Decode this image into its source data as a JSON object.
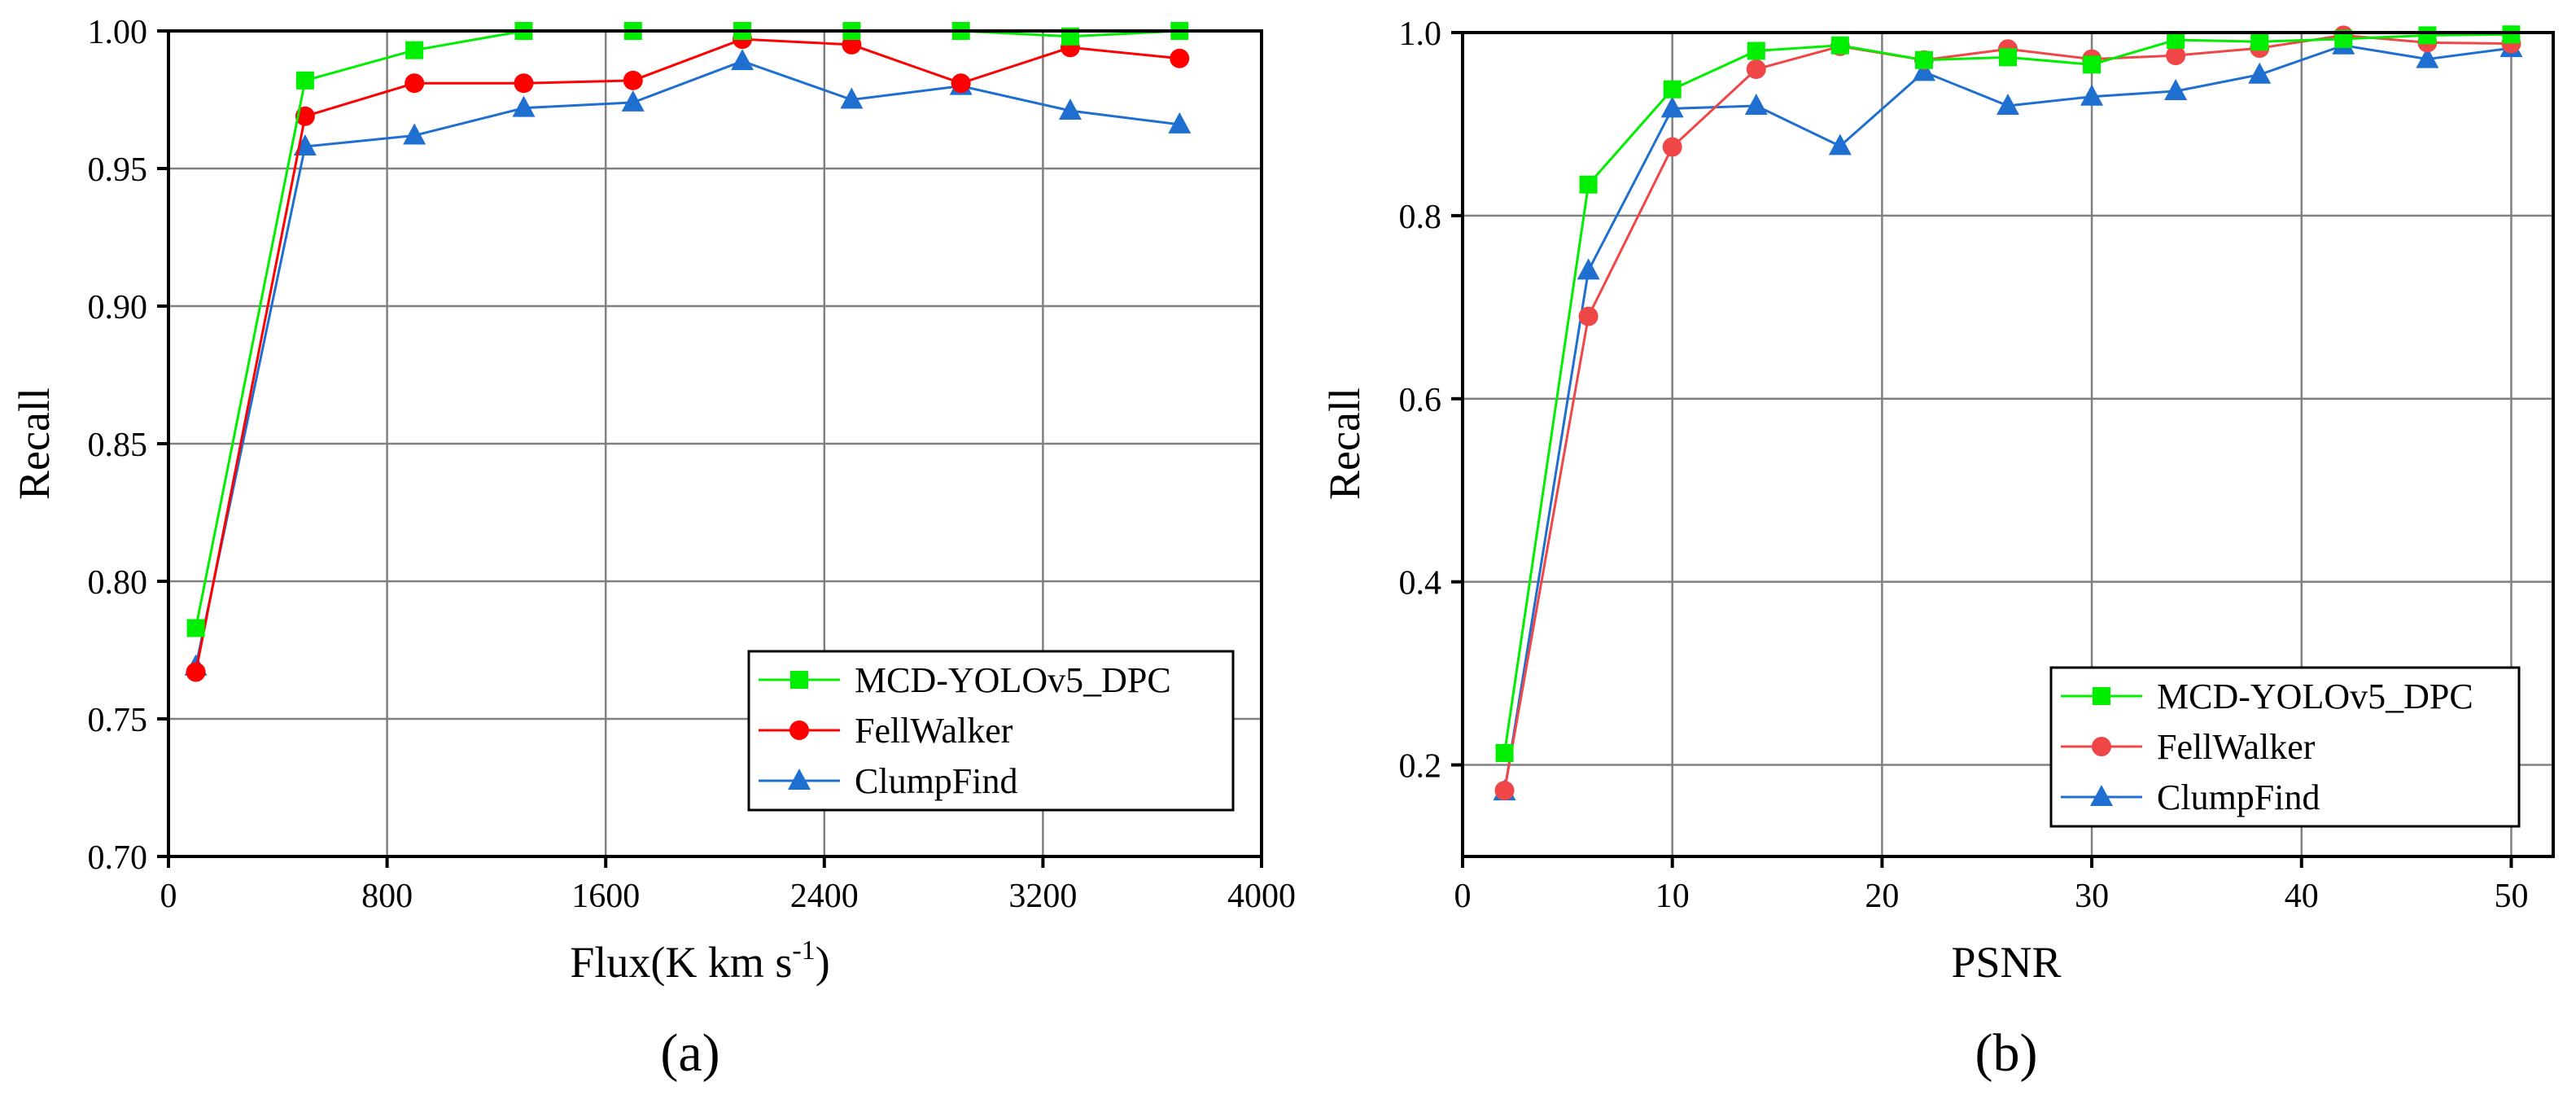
{
  "chart_data": [
    {
      "type": "line",
      "panel_label": "(a)",
      "xlabel_main": "Flux(K km s",
      "xlabel_sup": "-1",
      "xlabel_end": ")",
      "ylabel": "Recall",
      "xlim": [
        0,
        4000
      ],
      "ylim": [
        0.7,
        1.0
      ],
      "xticks": [
        0,
        800,
        1600,
        2400,
        3200,
        4000
      ],
      "xtick_labels": [
        "0",
        "800",
        "1600",
        "2400",
        "3200",
        "4000"
      ],
      "yticks": [
        0.7,
        0.75,
        0.8,
        0.85,
        0.9,
        0.95,
        1.0
      ],
      "ytick_labels": [
        "0.70",
        "0.75",
        "0.80",
        "0.85",
        "0.90",
        "0.95",
        "1.00"
      ],
      "grid": true,
      "legend_position": "bottom-right",
      "x": [
        100,
        500,
        900,
        1300,
        1700,
        2100,
        2500,
        2900,
        3300,
        3700
      ],
      "series": [
        {
          "name": "MCD-YOLOv5_DPC",
          "color": "#00ee00",
          "marker": "square",
          "values": [
            0.783,
            0.982,
            0.993,
            1.0,
            1.0,
            1.0,
            1.0,
            1.0,
            0.998,
            1.0
          ]
        },
        {
          "name": "FellWalker",
          "color": "#ff0000",
          "marker": "circle",
          "values": [
            0.767,
            0.969,
            0.981,
            0.981,
            0.982,
            0.997,
            0.995,
            0.981,
            0.994,
            0.99
          ]
        },
        {
          "name": "ClumpFind",
          "color": "#1f6fd0",
          "marker": "triangle",
          "values": [
            0.769,
            0.958,
            0.962,
            0.972,
            0.974,
            0.989,
            0.975,
            0.98,
            0.971,
            0.966
          ]
        }
      ]
    },
    {
      "type": "line",
      "panel_label": "(b)",
      "xlabel_main": "PSNR",
      "xlabel_sup": "",
      "xlabel_end": "",
      "ylabel": "Recall",
      "xlim": [
        0,
        52
      ],
      "ylim": [
        0.1,
        1.0
      ],
      "xticks": [
        0,
        10,
        20,
        30,
        40,
        50
      ],
      "xtick_labels": [
        "0",
        "10",
        "20",
        "30",
        "40",
        "50"
      ],
      "yticks": [
        0.2,
        0.4,
        0.6,
        0.8,
        1.0
      ],
      "ytick_labels": [
        "0.2",
        "0.4",
        "0.6",
        "0.8",
        "1.0"
      ],
      "grid": true,
      "legend_position": "bottom-right",
      "x": [
        2,
        6,
        10,
        14,
        18,
        22,
        26,
        30,
        34,
        38,
        42,
        46,
        50
      ],
      "series": [
        {
          "name": "MCD-YOLOv5_DPC",
          "color": "#00ee00",
          "marker": "square",
          "values": [
            0.213,
            0.834,
            0.938,
            0.98,
            0.986,
            0.97,
            0.973,
            0.965,
            0.992,
            0.99,
            0.993,
            0.997,
            0.998
          ]
        },
        {
          "name": "FellWalker",
          "color": "#ef4747",
          "marker": "circle",
          "values": [
            0.172,
            0.69,
            0.875,
            0.96,
            0.985,
            0.97,
            0.982,
            0.971,
            0.975,
            0.983,
            0.997,
            0.989,
            0.988
          ]
        },
        {
          "name": "ClumpFind",
          "color": "#1f6fd0",
          "marker": "triangle",
          "values": [
            0.171,
            0.74,
            0.917,
            0.92,
            0.876,
            0.957,
            0.92,
            0.93,
            0.936,
            0.954,
            0.986,
            0.971,
            0.983
          ]
        }
      ]
    }
  ]
}
